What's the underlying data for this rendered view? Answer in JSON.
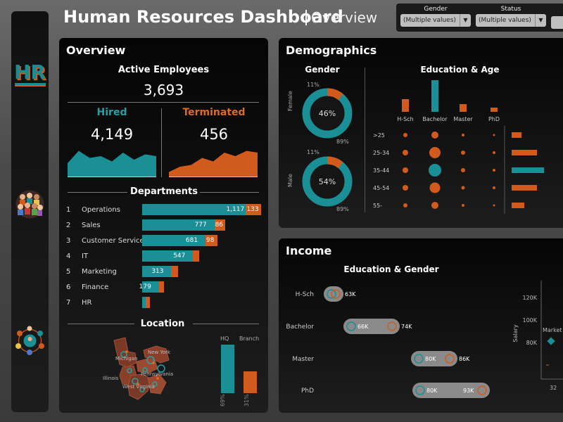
{
  "header": {
    "title": "Human Resources Dashboard",
    "subtitle": "Overview"
  },
  "filters": [
    {
      "label": "Gender",
      "value": "(Multiple values)"
    },
    {
      "label": "Status",
      "value": "(Multiple values)"
    }
  ],
  "sidebar": {
    "logo_text": "HR",
    "icons": [
      "hr-logo-icon",
      "people-crowd-icon",
      "network-people-icon"
    ]
  },
  "overview": {
    "title": "Overview",
    "active_label": "Active Employees",
    "active_value": "3,693",
    "hired_label": "Hired",
    "hired_value": "4,149",
    "terminated_label": "Terminated",
    "terminated_value": "456",
    "hired_spark": [
      40,
      75,
      55,
      60,
      45,
      70,
      50,
      65,
      60
    ],
    "terminated_spark": [
      15,
      30,
      35,
      55,
      45,
      70,
      60,
      75,
      70
    ],
    "departments_label": "Departments",
    "departments": [
      {
        "rank": "1",
        "name": "Operations",
        "hired": 1117,
        "hired_label": "1,117",
        "term": 133,
        "term_label": "133"
      },
      {
        "rank": "2",
        "name": "Sales",
        "hired": 777,
        "hired_label": "777",
        "term": 86,
        "term_label": "86"
      },
      {
        "rank": "3",
        "name": "Customer Service",
        "hired": 681,
        "hired_label": "681",
        "term": 98,
        "term_label": "98"
      },
      {
        "rank": "4",
        "name": "IT",
        "hired": 547,
        "hired_label": "547",
        "term": 35,
        "term_label": ""
      },
      {
        "rank": "5",
        "name": "Marketing",
        "hired": 313,
        "hired_label": "313",
        "term": 40,
        "term_label": ""
      },
      {
        "rank": "6",
        "name": "Finance",
        "hired": 179,
        "hired_label": "179",
        "term": 25,
        "term_label": ""
      },
      {
        "rank": "7",
        "name": "HR",
        "hired": 40,
        "hired_label": "",
        "term": 12,
        "term_label": ""
      }
    ],
    "location_label": "Location",
    "hq_label": "HQ",
    "branch_label": "Branch",
    "hq_pct": "69%",
    "branch_pct": "31%",
    "hq_value": 69,
    "branch_value": 31,
    "map_labels": [
      "Michigan",
      "New York",
      "Illinois",
      "Pennsylvania",
      "West Virginia"
    ]
  },
  "demographics": {
    "title": "Demographics",
    "gender_label": "Gender",
    "female_label": "Female",
    "male_label": "Male",
    "female": {
      "center": "46%",
      "top": "11%",
      "bottom": "89%",
      "frac": 0.11
    },
    "male": {
      "center": "54%",
      "top": "11%",
      "bottom": "89%",
      "frac": 0.11
    },
    "edu_age_label": "Education & Age",
    "education": [
      "H-Sch",
      "Bachelor",
      "Master",
      "PhD"
    ],
    "education_bar_values": [
      18,
      45,
      11,
      6
    ],
    "age_groups": [
      ">25",
      "25-34",
      "35-44",
      "45-54",
      "55-"
    ],
    "age_bar_values": [
      14,
      36,
      46,
      36,
      18
    ]
  },
  "income": {
    "title": "Income",
    "edu_gender_label": "Education & Gender",
    "rows": [
      {
        "label": "H-Sch",
        "low": "",
        "high": "63K"
      },
      {
        "label": "Bachelor",
        "low": "66K",
        "high": "74K"
      },
      {
        "label": "Master",
        "low": "80K",
        "high": "86K"
      },
      {
        "label": "PhD",
        "low": "80K",
        "high": "93K"
      }
    ],
    "salary_axis_label": "Salary",
    "salary_ticks": [
      "120K",
      "100K",
      "80K"
    ],
    "scatter_label": "Market",
    "x_tick": "32"
  },
  "colors": {
    "teal": "#1a8f95",
    "orange": "#d15b1c"
  }
}
